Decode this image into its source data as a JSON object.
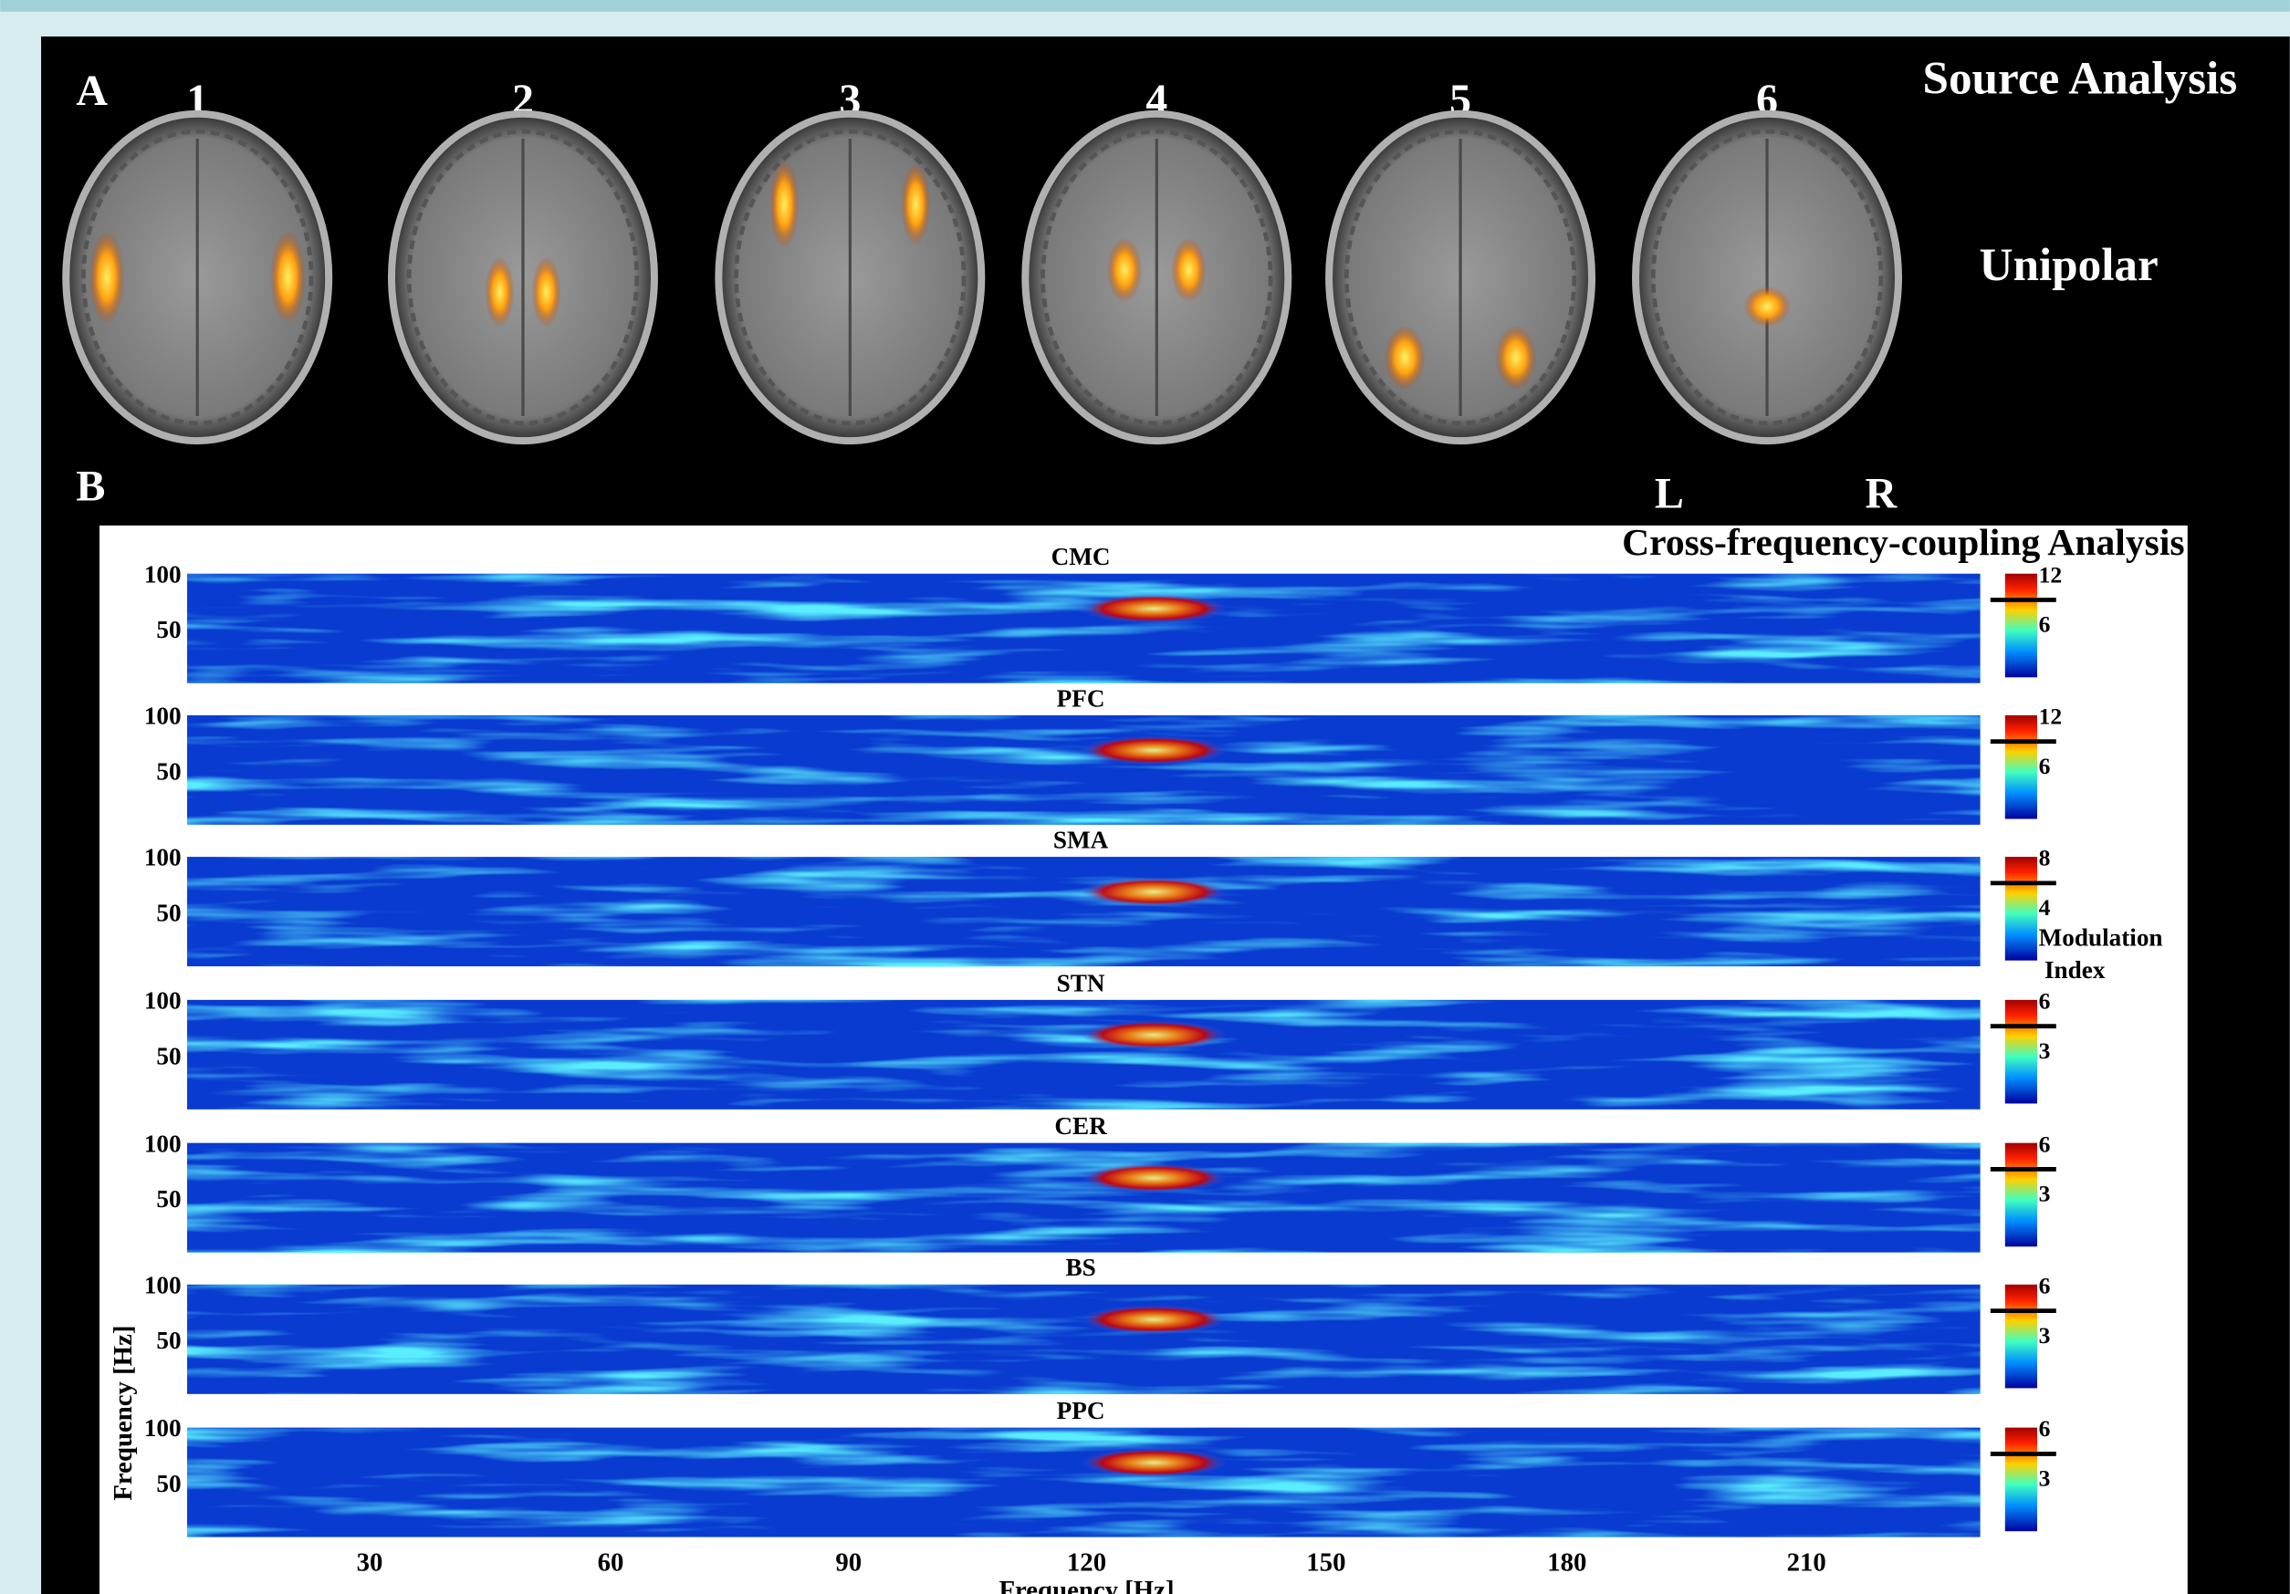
{
  "panel_a": {
    "letter": "A",
    "title": "Source Analysis",
    "subtitle": "Unipolar",
    "slices": [
      "1",
      "2",
      "3",
      "4",
      "5",
      "6"
    ],
    "orientation": [
      "L",
      "R"
    ]
  },
  "panel_b": {
    "letter": "B",
    "title": "Cross-frequency-coupling Analysis",
    "y_label": "Frequency [Hz]",
    "x_label": "Frequency [Hz]",
    "y_ticks": [
      100,
      50
    ],
    "x_ticks": [
      30,
      60,
      90,
      120,
      150,
      180,
      210
    ],
    "colorbar_label": [
      "Modulation",
      "Index"
    ],
    "rows": [
      {
        "name": "CMC",
        "colorbar_ticks": [
          12,
          6
        ]
      },
      {
        "name": "PFC",
        "colorbar_ticks": [
          12,
          6
        ]
      },
      {
        "name": "SMA",
        "colorbar_ticks": [
          8,
          4
        ]
      },
      {
        "name": "STN",
        "colorbar_ticks": [
          6,
          3
        ]
      },
      {
        "name": "CER",
        "colorbar_ticks": [
          6,
          3
        ]
      },
      {
        "name": "BS",
        "colorbar_ticks": [
          6,
          3
        ]
      },
      {
        "name": "PPC",
        "colorbar_ticks": [
          6,
          3
        ]
      }
    ]
  }
}
